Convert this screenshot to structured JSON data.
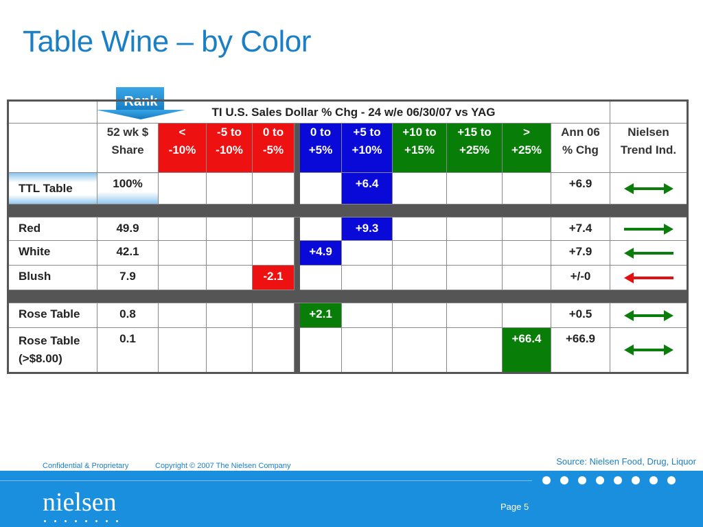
{
  "title": "Table Wine – by Color",
  "rank_label": "Rank",
  "table": {
    "header": "TI U.S. Sales Dollar % Chg - 24 w/e 06/30/07 vs YAG",
    "columns": {
      "share": [
        "52 wk $",
        "Share"
      ],
      "c1": [
        "<",
        "-10%"
      ],
      "c2": [
        "-5 to",
        "-10%"
      ],
      "c3": [
        "0 to",
        "-5%"
      ],
      "c4": [
        "0 to",
        "+5%"
      ],
      "c5": [
        "+5 to",
        "+10%"
      ],
      "c6": [
        "+10 to",
        "+15%"
      ],
      "c7": [
        "+15 to",
        "+25%"
      ],
      "c8": [
        ">",
        "+25%"
      ],
      "ann": [
        "Ann 06",
        "% Chg"
      ],
      "trend": [
        "Nielsen",
        "Trend Ind."
      ]
    },
    "rows": {
      "ttl": {
        "label": "TTL Table",
        "share": "100%",
        "value": "+6.4",
        "ann": "+6.9",
        "trend": "both"
      },
      "red": {
        "label": "Red",
        "share": "49.9",
        "value": "+9.3",
        "ann": "+7.4",
        "trend": "right"
      },
      "white": {
        "label": "White",
        "share": "42.1",
        "value": "+4.9",
        "ann": "+7.9",
        "trend": "left"
      },
      "blush": {
        "label": "Blush",
        "share": "7.9",
        "value": "-2.1",
        "ann": "+/-0",
        "trend": "left-red"
      },
      "rose": {
        "label": "Rose Table",
        "share": "0.8",
        "value": "+2.1",
        "ann": "+0.5",
        "trend": "both"
      },
      "rose8": {
        "label1": "Rose Table",
        "label2": "(>$8.00)",
        "share": "0.1",
        "value": "+66.4",
        "ann": "+66.9",
        "trend": "both"
      }
    }
  },
  "colors": {
    "red": "#ee1111",
    "blue": "#0a0ad8",
    "green": "#087d08",
    "arrow_green": "#0a7d0a",
    "arrow_red": "#e21010",
    "brand_blue": "#1a8fdd"
  },
  "footer": {
    "confidential": "Confidential & Proprietary",
    "copyright": "Copyright © 2007 The Nielsen Company",
    "source": "Source:  Nielsen Food, Drug, Liquor",
    "logo": "nielsen",
    "page": "Page 5"
  }
}
